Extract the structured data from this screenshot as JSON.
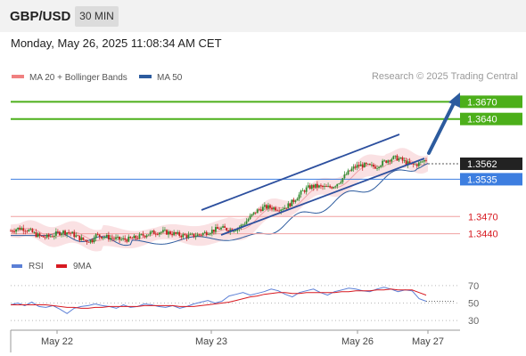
{
  "header": {
    "symbol": "GBP/USD",
    "timeframe": "30 MIN"
  },
  "timestamp": "Monday, May 26, 2025 11:08:34 AM CET",
  "credit": "Research © 2025 Trading Central",
  "legend": {
    "items": [
      {
        "label": "MA 20 + Bollinger Bands",
        "color": "#f08080"
      },
      {
        "label": "MA 50",
        "color": "#2c5b9e"
      }
    ]
  },
  "rsi_legend": {
    "items": [
      {
        "label": "RSI",
        "color": "#5b7fd6"
      },
      {
        "label": "9MA",
        "color": "#d71920"
      }
    ]
  },
  "chart_data": [
    {
      "type": "candlestick",
      "title": "GBP/USD",
      "ylim": [
        1.341,
        1.37
      ],
      "x_labels": [
        "May 22",
        "May 23",
        "May 26",
        "May 27"
      ],
      "current_price": {
        "value": 1.3562,
        "label": "1.3562"
      },
      "levels": [
        {
          "value": 1.367,
          "label": "1.3670",
          "kind": "target"
        },
        {
          "value": 1.364,
          "label": "1.3640",
          "kind": "target"
        },
        {
          "value": 1.3535,
          "label": "1.3535",
          "kind": "pivot"
        },
        {
          "value": 1.347,
          "label": "1.3470",
          "kind": "support"
        },
        {
          "value": 1.344,
          "label": "1.3440",
          "kind": "support"
        }
      ],
      "colors": {
        "up": "#2e8b2e",
        "down": "#c41e1e",
        "target": "#4caf1a",
        "pivot": "#3d7ee0",
        "support": "#d71920",
        "channel": "#2c4f9e"
      }
    },
    {
      "type": "line",
      "title": "RSI",
      "ylim": [
        20,
        80
      ],
      "yticks": [
        70,
        50,
        30
      ],
      "series": [
        {
          "name": "RSI",
          "values": [
            48,
            50,
            47,
            51,
            46,
            45,
            47,
            43,
            38,
            44,
            46,
            47,
            49,
            47,
            46,
            44,
            48,
            45,
            46,
            49,
            48,
            46,
            45,
            47,
            44,
            46,
            49,
            51,
            53,
            50,
            52,
            58,
            60,
            62,
            59,
            61,
            63,
            66,
            64,
            60,
            57,
            62,
            64,
            66,
            62,
            59,
            63,
            65,
            67,
            66,
            64,
            63,
            66,
            68,
            66,
            63,
            65,
            64,
            55,
            52
          ]
        },
        {
          "name": "9MA",
          "values": [
            48,
            48,
            48,
            48,
            48,
            48,
            47,
            46,
            45,
            45,
            44,
            44,
            45,
            45,
            46,
            46,
            46,
            46,
            46,
            47,
            47,
            47,
            47,
            47,
            46,
            46,
            46,
            47,
            48,
            49,
            50,
            51,
            53,
            55,
            57,
            58,
            60,
            61,
            62,
            62,
            61,
            61,
            62,
            62,
            62,
            62,
            62,
            63,
            63,
            64,
            64,
            64,
            65,
            65,
            66,
            65,
            65,
            65,
            62,
            59
          ]
        }
      ]
    }
  ]
}
